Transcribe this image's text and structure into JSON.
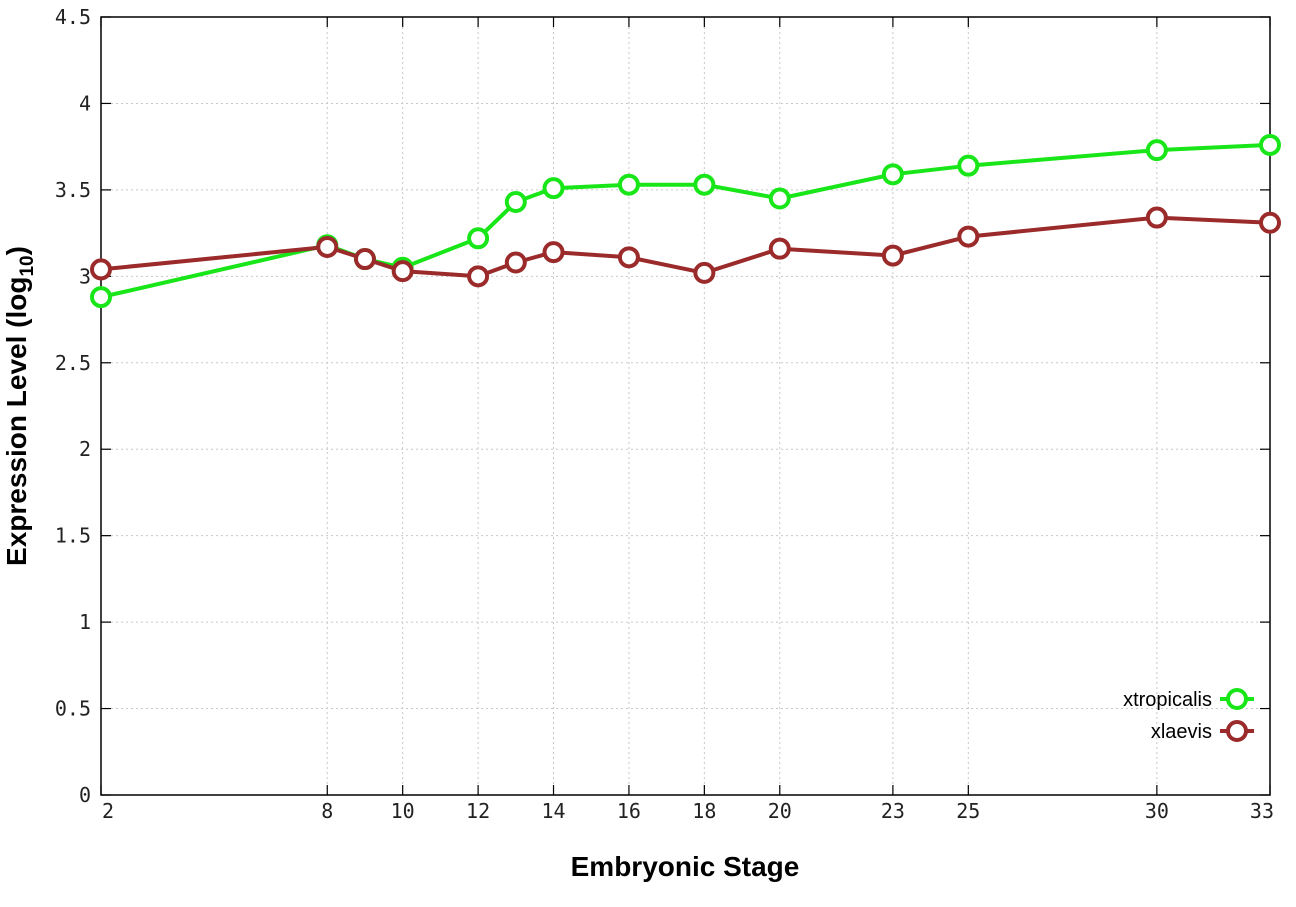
{
  "chart_data": {
    "type": "line",
    "xlabel": "Embryonic Stage",
    "ylabel": "Expression Level (log",
    "ylabel_sub": "10",
    "ylabel_end": ")",
    "x_ticks": [
      2,
      8,
      10,
      12,
      14,
      16,
      18,
      20,
      23,
      25,
      30,
      33
    ],
    "y_ticks": [
      "0",
      "0.5",
      "1",
      "1.5",
      "2",
      "2.5",
      "3",
      "3.5",
      "4",
      "4.5"
    ],
    "xlim": [
      2,
      33
    ],
    "ylim": [
      0,
      4.5
    ],
    "grid": true,
    "legend_position": "bottom-right",
    "series": [
      {
        "name": "xtropicalis",
        "color": "#19e619",
        "x": [
          2,
          8,
          9,
          10,
          12,
          13,
          14,
          16,
          18,
          20,
          23,
          25,
          30,
          33
        ],
        "y": [
          2.88,
          3.18,
          3.1,
          3.05,
          3.22,
          3.43,
          3.51,
          3.53,
          3.53,
          3.45,
          3.59,
          3.64,
          3.73,
          3.76
        ]
      },
      {
        "name": "xlaevis",
        "color": "#9b2a2a",
        "x": [
          2,
          8,
          9,
          10,
          12,
          13,
          14,
          16,
          18,
          20,
          23,
          25,
          30,
          33
        ],
        "y": [
          3.04,
          3.17,
          3.1,
          3.03,
          3.0,
          3.08,
          3.14,
          3.11,
          3.02,
          3.16,
          3.12,
          3.23,
          3.34,
          3.31
        ]
      }
    ]
  }
}
